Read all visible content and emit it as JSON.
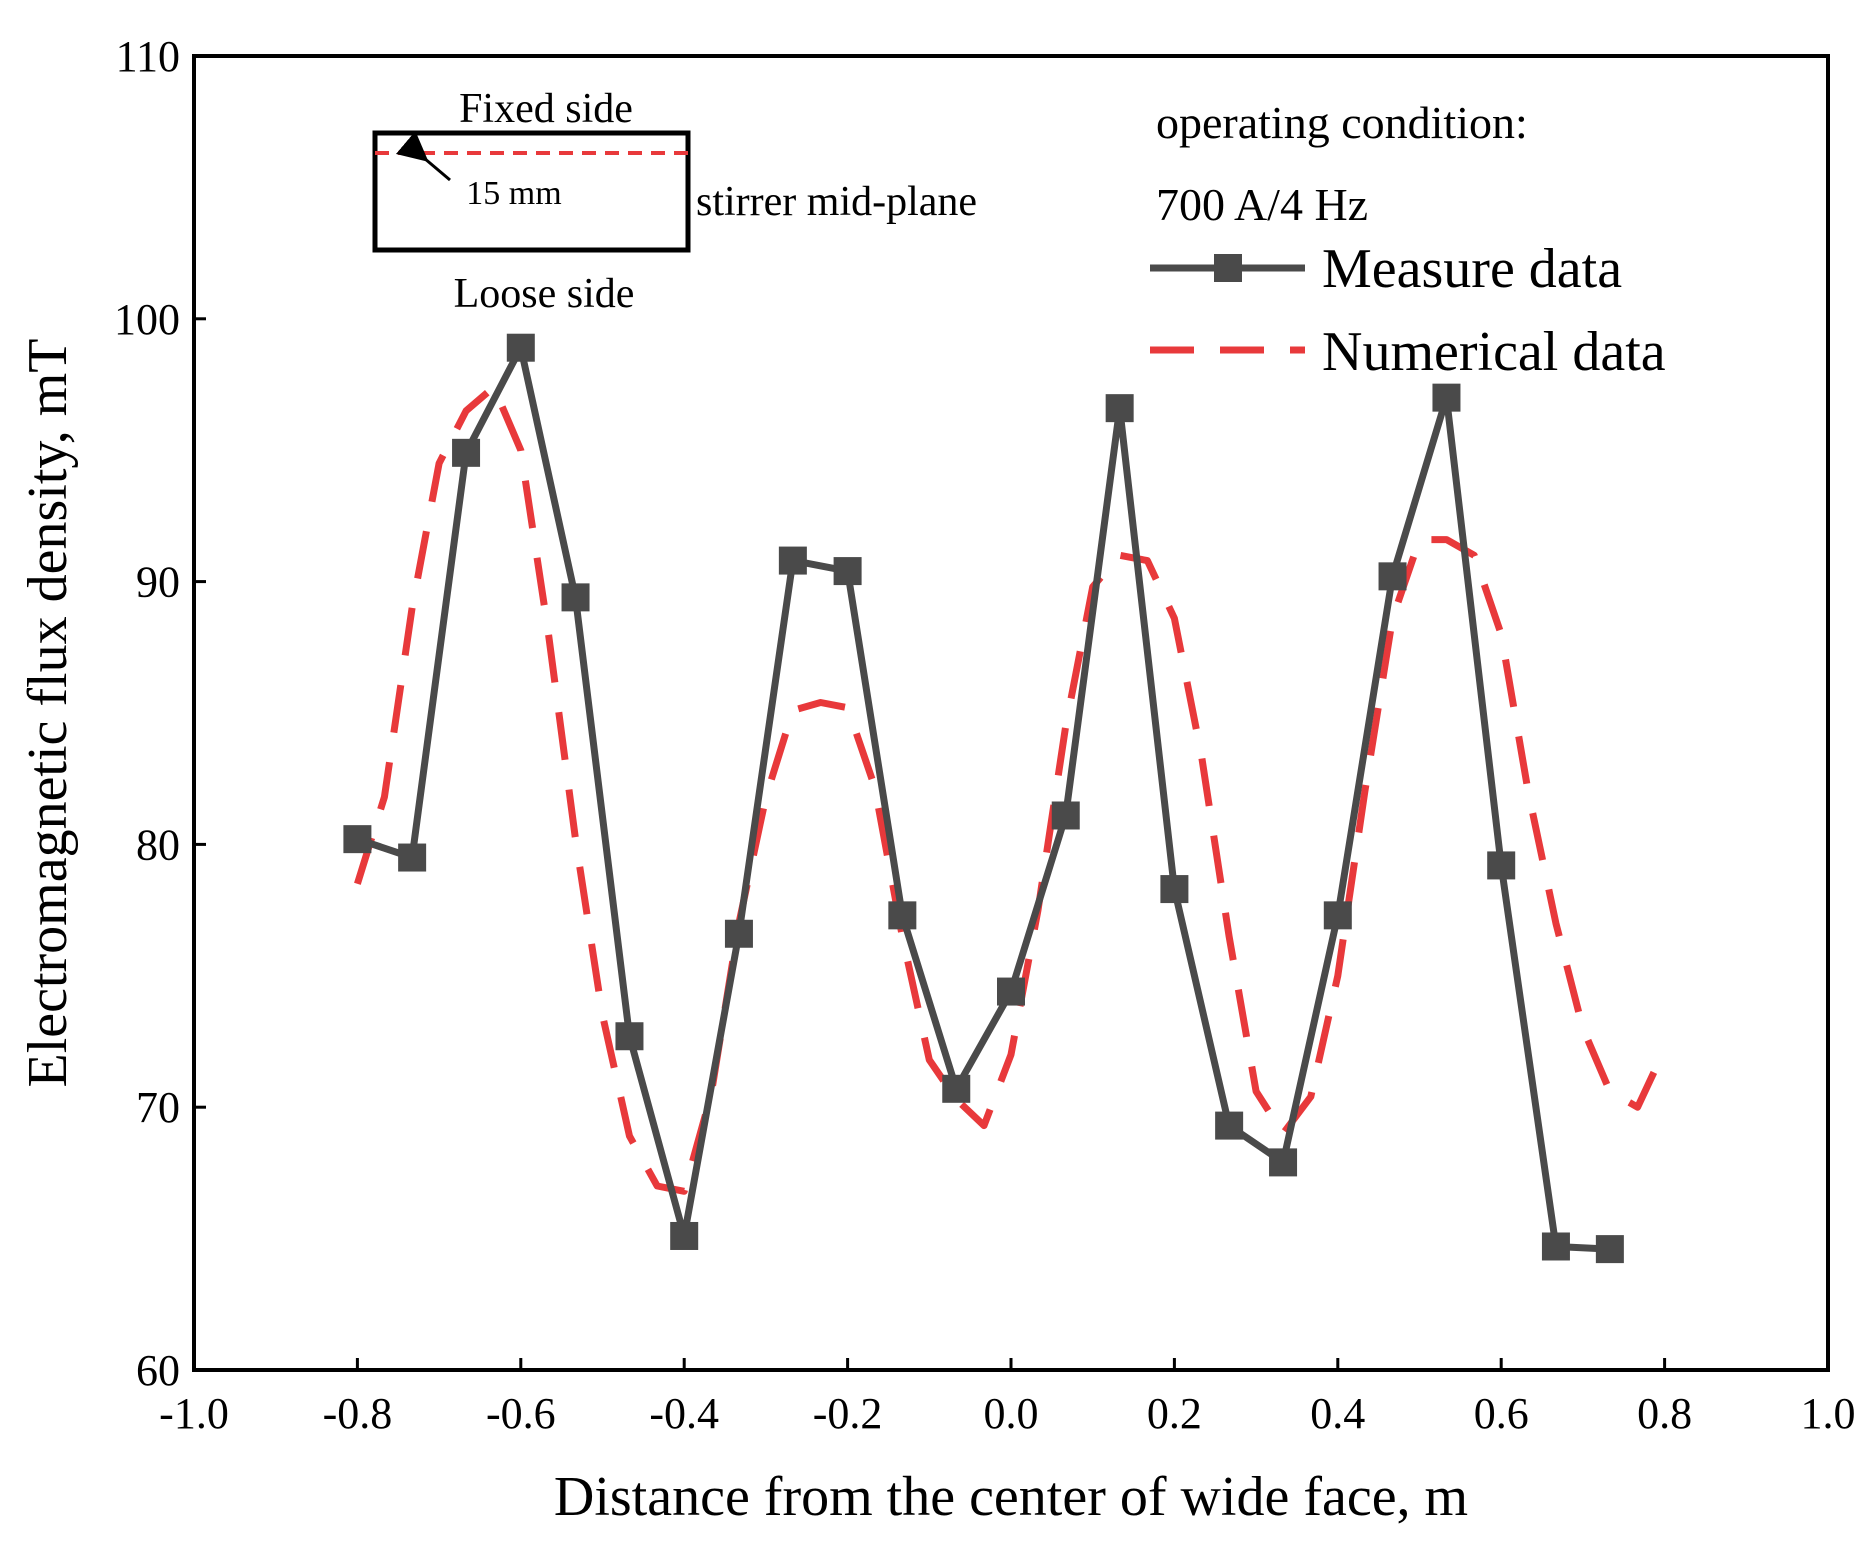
{
  "chart_data": {
    "type": "line",
    "title": "",
    "xlabel": "Distance from the center of wide face, m",
    "ylabel": "Electromagnetic flux density, mT",
    "xlim": [
      -1.0,
      1.0
    ],
    "ylim": [
      60,
      110
    ],
    "xticks": [
      -1.0,
      -0.8,
      -0.6,
      -0.4,
      -0.2,
      0.0,
      0.2,
      0.4,
      0.6,
      0.8,
      1.0
    ],
    "xtick_labels": [
      "-1.0",
      "-0.8",
      "-0.6",
      "-0.4",
      "-0.2",
      "0.0",
      "0.2",
      "0.4",
      "0.6",
      "0.8",
      "1.0"
    ],
    "yticks": [
      60,
      70,
      80,
      90,
      100,
      110
    ],
    "ytick_labels": [
      "60",
      "70",
      "80",
      "90",
      "100",
      "110"
    ],
    "grid": false,
    "legend_position": "top-right",
    "series": [
      {
        "name": "Measure data",
        "style": "solid-square-markers",
        "color": "#4a4a4a",
        "x": [
          -0.8,
          -0.733,
          -0.667,
          -0.6,
          -0.533,
          -0.467,
          -0.4,
          -0.333,
          -0.267,
          -0.2,
          -0.133,
          -0.067,
          0.0,
          0.067,
          0.133,
          0.2,
          0.267,
          0.333,
          0.4,
          0.467,
          0.533,
          0.6,
          0.667,
          0.733
        ],
        "y": [
          80.2,
          79.5,
          94.9,
          98.9,
          89.4,
          72.7,
          65.1,
          76.6,
          90.8,
          90.4,
          77.3,
          70.7,
          74.4,
          81.1,
          96.6,
          78.3,
          69.3,
          67.9,
          77.3,
          90.2,
          97.0,
          79.2,
          64.7,
          64.6
        ]
      },
      {
        "name": "Numerical data",
        "style": "dashed",
        "color": "#e8393b",
        "x": [
          -0.8,
          -0.767,
          -0.733,
          -0.7,
          -0.667,
          -0.633,
          -0.6,
          -0.567,
          -0.533,
          -0.5,
          -0.467,
          -0.433,
          -0.4,
          -0.367,
          -0.333,
          -0.3,
          -0.267,
          -0.233,
          -0.2,
          -0.167,
          -0.133,
          -0.1,
          -0.067,
          -0.033,
          0.0,
          0.033,
          0.067,
          0.1,
          0.133,
          0.167,
          0.2,
          0.233,
          0.267,
          0.3,
          0.333,
          0.367,
          0.4,
          0.433,
          0.467,
          0.5,
          0.533,
          0.567,
          0.6,
          0.633,
          0.667,
          0.7,
          0.733,
          0.767,
          0.8
        ],
        "y": [
          78.5,
          81.8,
          89.0,
          94.5,
          96.5,
          97.4,
          95.0,
          88.2,
          80.2,
          73.5,
          68.9,
          67.0,
          66.8,
          70.5,
          77.0,
          81.8,
          85.1,
          85.4,
          85.2,
          82.2,
          76.5,
          71.8,
          70.3,
          69.3,
          72.0,
          77.5,
          84.5,
          89.8,
          91.0,
          90.8,
          88.6,
          83.4,
          76.5,
          70.6,
          69.0,
          70.4,
          75.0,
          82.0,
          88.6,
          91.6,
          91.6,
          91.0,
          88.0,
          82.0,
          77.0,
          73.0,
          70.6,
          70.0,
          72.2
        ]
      }
    ],
    "annotations": {
      "condition_line1": "operating condition:",
      "condition_line2": "700 A/4 Hz",
      "inset_top": "Fixed side",
      "inset_bottom": "Loose side",
      "inset_offset": "15 mm",
      "inset_side": "stirrer mid-plane"
    }
  }
}
